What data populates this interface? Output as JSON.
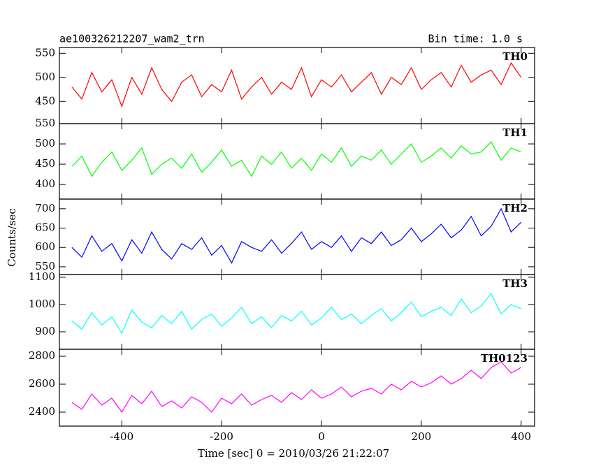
{
  "header": {
    "title": "ae100326212207_wam2_trn",
    "bin_time": "Bin time: 1.0 s",
    "y_label": "Counts/sec",
    "x_label": "Time [sec] 0 = 2010/03/26 21:22:07"
  },
  "chart_data": [
    {
      "type": "line",
      "label": "TH0",
      "xlim": [
        -525,
        427
      ],
      "xticks": [
        -400,
        -200,
        0,
        200,
        400
      ],
      "ylim": [
        404,
        562
      ],
      "yticks": [
        450,
        500,
        550
      ],
      "x": [
        -500,
        -480,
        -460,
        -440,
        -420,
        -400,
        -380,
        -360,
        -340,
        -320,
        -300,
        -280,
        -260,
        -240,
        -220,
        -200,
        -180,
        -160,
        -140,
        -120,
        -100,
        -80,
        -60,
        -40,
        -20,
        0,
        20,
        40,
        60,
        80,
        100,
        120,
        140,
        160,
        180,
        200,
        220,
        240,
        260,
        280,
        300,
        320,
        340,
        360,
        380,
        400
      ],
      "series": [
        {
          "name": "TH0",
          "color": "#ff0000",
          "values": [
            480,
            455,
            510,
            470,
            495,
            440,
            500,
            465,
            520,
            475,
            450,
            490,
            505,
            460,
            485,
            470,
            515,
            455,
            480,
            500,
            465,
            490,
            475,
            520,
            460,
            495,
            480,
            505,
            470,
            490,
            510,
            465,
            500,
            485,
            520,
            475,
            495,
            510,
            480,
            525,
            490,
            505,
            515,
            485,
            530,
            500
          ]
        }
      ]
    },
    {
      "type": "line",
      "label": "TH1",
      "xlim": [
        -525,
        427
      ],
      "xticks": [
        -400,
        -200,
        0,
        200,
        400
      ],
      "ylim": [
        364,
        550
      ],
      "yticks": [
        400,
        450,
        500,
        550
      ],
      "x": [
        -500,
        -480,
        -460,
        -440,
        -420,
        -400,
        -380,
        -360,
        -340,
        -320,
        -300,
        -280,
        -260,
        -240,
        -220,
        -200,
        -180,
        -160,
        -140,
        -120,
        -100,
        -80,
        -60,
        -40,
        -20,
        0,
        20,
        40,
        60,
        80,
        100,
        120,
        140,
        160,
        180,
        200,
        220,
        240,
        260,
        280,
        300,
        320,
        340,
        360,
        380,
        400
      ],
      "series": [
        {
          "name": "TH1",
          "color": "#00ff00",
          "values": [
            445,
            470,
            420,
            455,
            480,
            435,
            460,
            490,
            425,
            450,
            465,
            440,
            475,
            430,
            455,
            485,
            445,
            460,
            420,
            470,
            450,
            480,
            440,
            465,
            435,
            475,
            455,
            490,
            445,
            470,
            460,
            485,
            450,
            475,
            500,
            455,
            470,
            490,
            465,
            495,
            475,
            480,
            505,
            460,
            490,
            480
          ]
        }
      ]
    },
    {
      "type": "line",
      "label": "TH2",
      "xlim": [
        -525,
        427
      ],
      "xticks": [
        -400,
        -200,
        0,
        200,
        400
      ],
      "ylim": [
        530,
        725
      ],
      "yticks": [
        550,
        600,
        650,
        700
      ],
      "x": [
        -500,
        -480,
        -460,
        -440,
        -420,
        -400,
        -380,
        -360,
        -340,
        -320,
        -300,
        -280,
        -260,
        -240,
        -220,
        -200,
        -180,
        -160,
        -140,
        -120,
        -100,
        -80,
        -60,
        -40,
        -20,
        0,
        20,
        40,
        60,
        80,
        100,
        120,
        140,
        160,
        180,
        200,
        220,
        240,
        260,
        280,
        300,
        320,
        340,
        360,
        380,
        400
      ],
      "series": [
        {
          "name": "TH2",
          "color": "#0000ff",
          "values": [
            600,
            575,
            630,
            590,
            610,
            565,
            620,
            585,
            640,
            595,
            570,
            610,
            595,
            625,
            580,
            605,
            560,
            615,
            600,
            590,
            620,
            585,
            610,
            640,
            595,
            615,
            600,
            630,
            590,
            625,
            610,
            640,
            605,
            620,
            650,
            615,
            635,
            660,
            625,
            645,
            680,
            630,
            655,
            700,
            640,
            665
          ]
        }
      ]
    },
    {
      "type": "line",
      "label": "TH3",
      "xlim": [
        -525,
        427
      ],
      "xticks": [
        -400,
        -200,
        0,
        200,
        400
      ],
      "ylim": [
        836,
        1110
      ],
      "yticks": [
        900,
        1000,
        1100
      ],
      "x": [
        -500,
        -480,
        -460,
        -440,
        -420,
        -400,
        -380,
        -360,
        -340,
        -320,
        -300,
        -280,
        -260,
        -240,
        -220,
        -200,
        -180,
        -160,
        -140,
        -120,
        -100,
        -80,
        -60,
        -40,
        -20,
        0,
        20,
        40,
        60,
        80,
        100,
        120,
        140,
        160,
        180,
        200,
        220,
        240,
        260,
        280,
        300,
        320,
        340,
        360,
        380,
        400
      ],
      "series": [
        {
          "name": "TH3",
          "color": "#00ffff",
          "values": [
            940,
            910,
            970,
            925,
            955,
            895,
            980,
            935,
            915,
            960,
            930,
            975,
            910,
            945,
            965,
            920,
            950,
            990,
            930,
            955,
            915,
            960,
            940,
            975,
            925,
            950,
            990,
            945,
            965,
            930,
            960,
            985,
            940,
            970,
            1010,
            955,
            975,
            990,
            960,
            1020,
            970,
            995,
            1040,
            965,
            1000,
            985
          ]
        }
      ]
    },
    {
      "type": "line",
      "label": "TH0123",
      "xlim": [
        -525,
        427
      ],
      "xticks": [
        -400,
        -200,
        0,
        200,
        400
      ],
      "ylim": [
        2300,
        2850
      ],
      "yticks": [
        2400,
        2600,
        2800
      ],
      "x": [
        -500,
        -480,
        -460,
        -440,
        -420,
        -400,
        -380,
        -360,
        -340,
        -320,
        -300,
        -280,
        -260,
        -240,
        -220,
        -200,
        -180,
        -160,
        -140,
        -120,
        -100,
        -80,
        -60,
        -40,
        -20,
        0,
        20,
        40,
        60,
        80,
        100,
        120,
        140,
        160,
        180,
        200,
        220,
        240,
        260,
        280,
        300,
        320,
        340,
        360,
        380,
        400
      ],
      "series": [
        {
          "name": "TH0123",
          "color": "#ff00ff",
          "values": [
            2470,
            2420,
            2530,
            2450,
            2500,
            2400,
            2520,
            2460,
            2550,
            2440,
            2480,
            2430,
            2510,
            2470,
            2400,
            2500,
            2460,
            2530,
            2450,
            2490,
            2520,
            2470,
            2540,
            2490,
            2560,
            2500,
            2530,
            2580,
            2510,
            2550,
            2570,
            2530,
            2600,
            2560,
            2620,
            2580,
            2610,
            2660,
            2600,
            2640,
            2700,
            2640,
            2720,
            2760,
            2680,
            2720
          ]
        }
      ]
    }
  ]
}
